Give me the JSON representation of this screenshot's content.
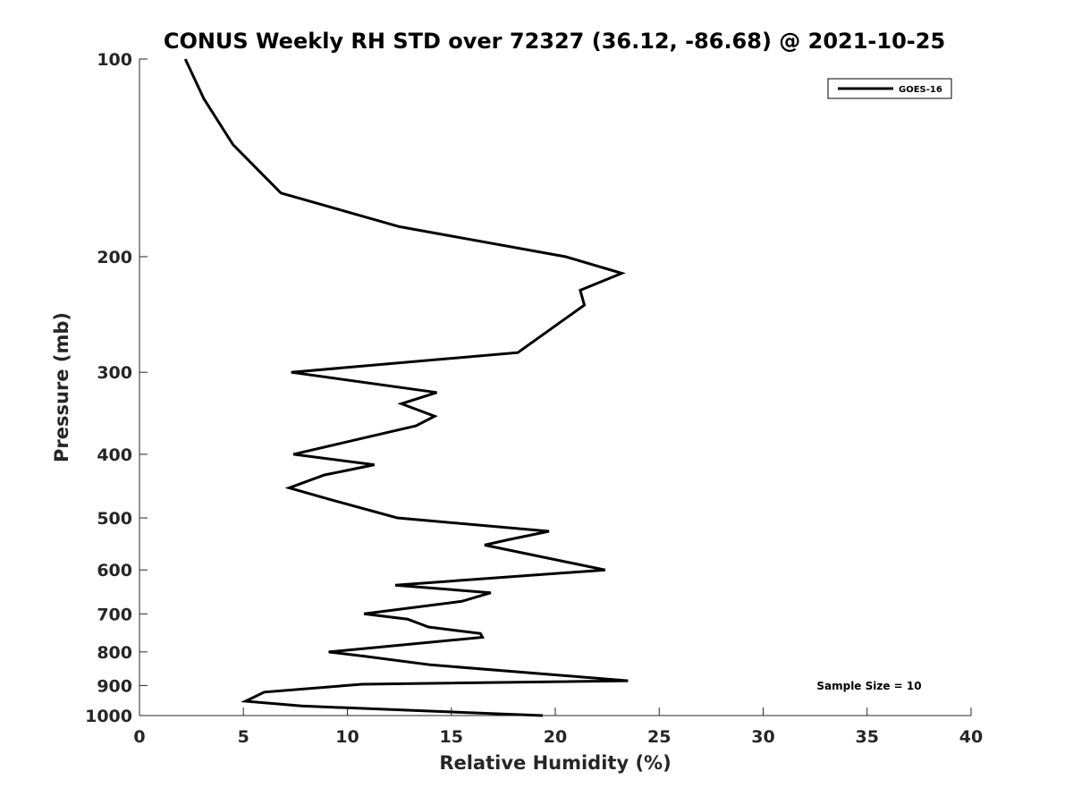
{
  "chart_data": {
    "type": "line",
    "title": "CONUS Weekly RH STD over 72327 (36.12, -86.68) @ 2021-10-25",
    "xlabel": "Relative Humidity (%)",
    "ylabel": "Pressure (mb)",
    "xlim": [
      0,
      40
    ],
    "ylim": [
      100,
      1000
    ],
    "y_scale": "log",
    "y_reversed": true,
    "xticks": [
      0,
      5,
      10,
      15,
      20,
      25,
      30,
      35,
      40
    ],
    "xtick_labels": [
      "0",
      "5",
      "10",
      "15",
      "20",
      "25",
      "30",
      "35",
      "40"
    ],
    "yticks": [
      100,
      200,
      300,
      400,
      500,
      600,
      700,
      800,
      900,
      1000
    ],
    "ytick_labels": [
      "100",
      "200",
      "300",
      "400",
      "500",
      "600",
      "700",
      "800",
      "900",
      "1000"
    ],
    "grid": false,
    "legend_position": "top-right",
    "annotation": "Sample Size = 10",
    "series": [
      {
        "name": "GOES-16",
        "color": "#000000",
        "points": [
          [
            2.2,
            100
          ],
          [
            3.1,
            115
          ],
          [
            4.5,
            135
          ],
          [
            6.8,
            160
          ],
          [
            12.5,
            180
          ],
          [
            20.5,
            200
          ],
          [
            23.2,
            212
          ],
          [
            21.2,
            225
          ],
          [
            21.4,
            237
          ],
          [
            18.2,
            280
          ],
          [
            7.3,
            300
          ],
          [
            14.3,
            322
          ],
          [
            12.6,
            335
          ],
          [
            14.2,
            350
          ],
          [
            13.3,
            362
          ],
          [
            7.4,
            400
          ],
          [
            11.3,
            415
          ],
          [
            8.9,
            430
          ],
          [
            7.2,
            450
          ],
          [
            9.3,
            470
          ],
          [
            12.4,
            500
          ],
          [
            19.7,
            524
          ],
          [
            17.7,
            540
          ],
          [
            16.6,
            550
          ],
          [
            22.4,
            600
          ],
          [
            12.3,
            633
          ],
          [
            16.9,
            650
          ],
          [
            15.5,
            670
          ],
          [
            10.8,
            700
          ],
          [
            12.9,
            713
          ],
          [
            13.9,
            733
          ],
          [
            16.4,
            750
          ],
          [
            16.5,
            760
          ],
          [
            9.1,
            800
          ],
          [
            10.8,
            812
          ],
          [
            14.0,
            837
          ],
          [
            23.5,
            885
          ],
          [
            10.7,
            896
          ],
          [
            6.0,
            921
          ],
          [
            5.1,
            951
          ],
          [
            7.8,
            967
          ],
          [
            19.4,
            1000
          ]
        ]
      }
    ]
  }
}
